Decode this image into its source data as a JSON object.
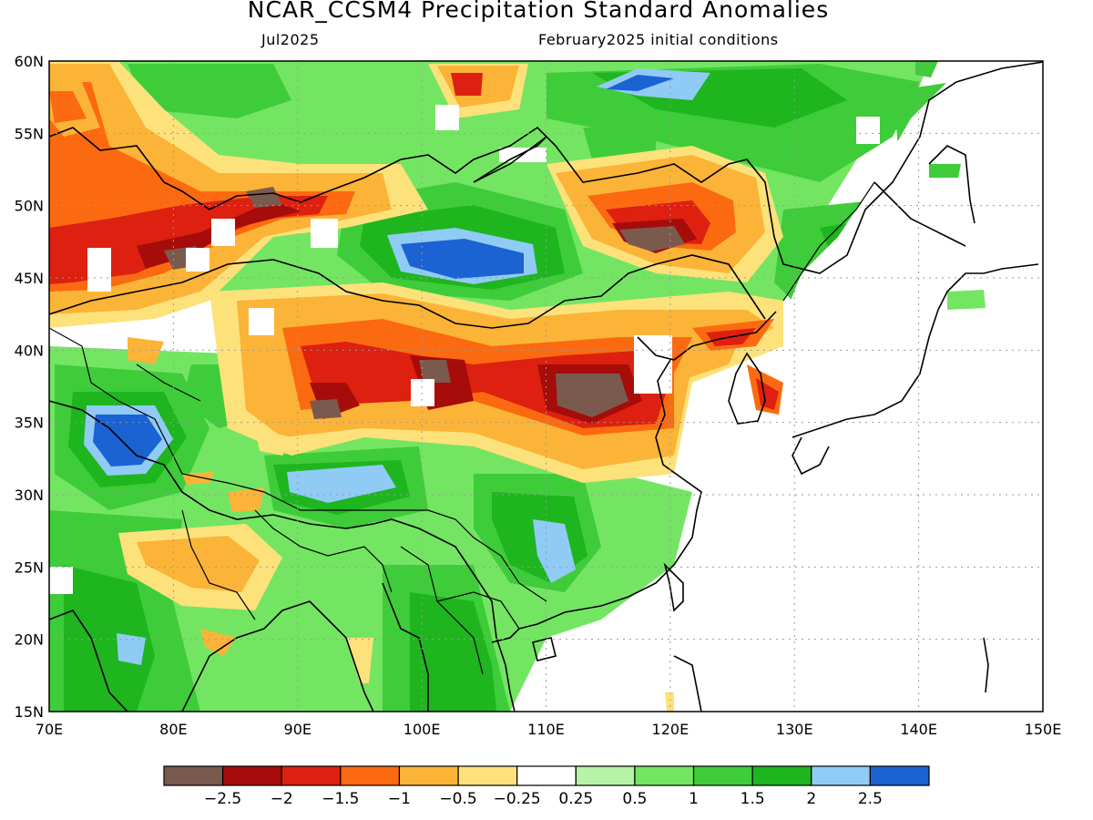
{
  "title": "NCAR_CCSM4 Precipitation Standard Anomalies",
  "subtitle_left": "Jul2025",
  "subtitle_right": "February2025 initial conditions",
  "map": {
    "lon_range": [
      70,
      150
    ],
    "lat_range": [
      15,
      60
    ],
    "x_ticks": [
      "70E",
      "80E",
      "90E",
      "100E",
      "110E",
      "120E",
      "130E",
      "140E",
      "150E"
    ],
    "y_ticks": [
      "60N",
      "55N",
      "50N",
      "45N",
      "40N",
      "35N",
      "30N",
      "25N",
      "20N",
      "15N"
    ],
    "grid": "dotted",
    "colors": {
      "lt-2.5": "#7b5a4e",
      "-2.5_-2": "#a50c0a",
      "-2_-1.5": "#dd2010",
      "-1.5_-1": "#fb6a10",
      "-1_-0.5": "#fbb437",
      "-0.5_-0.25": "#fde17b",
      "-0.25_0.25": "#ffffff",
      "0.25_0.5": "#b5f3a5",
      "0.5_1": "#74e563",
      "1_1.5": "#3fcc3a",
      "1.5_2": "#1eb51e",
      "2_2.5": "#90cbf5",
      "gt2.5": "#1b62d2"
    }
  },
  "colorbar": {
    "colors": [
      "#7b5a4e",
      "#a50c0a",
      "#dd2010",
      "#fb6a10",
      "#fbb437",
      "#fde17b",
      "#ffffff",
      "#b5f3a5",
      "#74e563",
      "#3fcc3a",
      "#1eb51e",
      "#90cbf5",
      "#1b62d2"
    ],
    "labels": [
      "−2.5",
      "−2",
      "−1.5",
      "−1",
      "−0.5",
      "−0.25",
      "0.25",
      "0.5",
      "1",
      "1.5",
      "2",
      "2.5"
    ]
  }
}
